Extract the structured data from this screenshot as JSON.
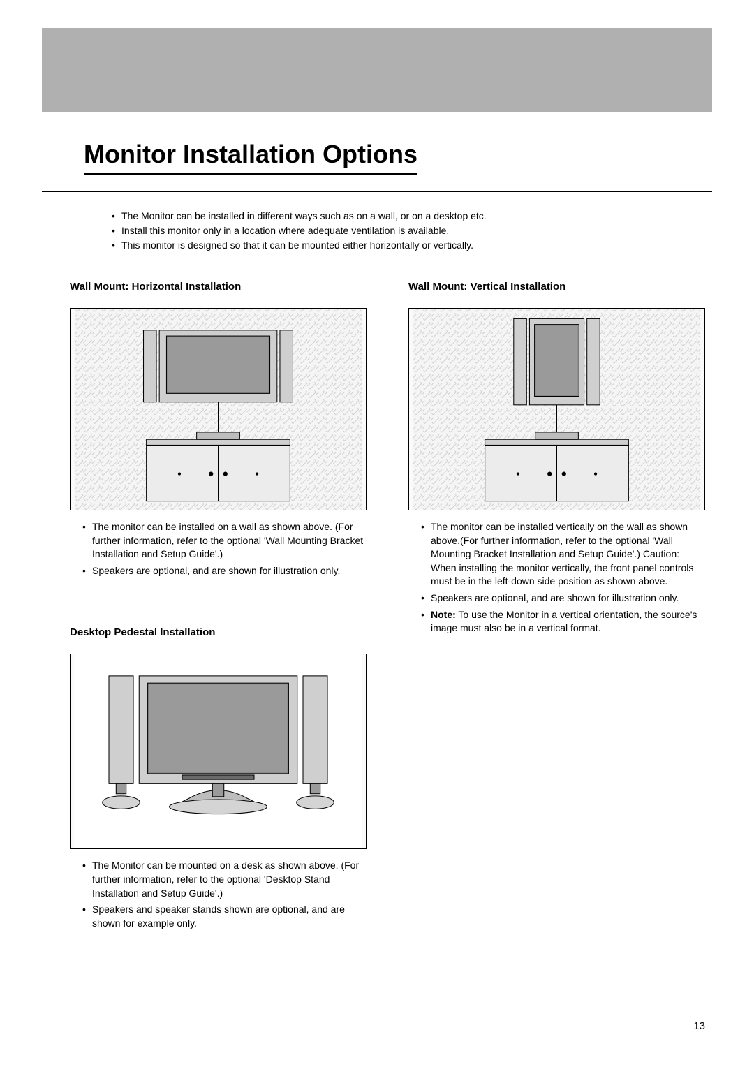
{
  "page": {
    "title": "Monitor Installation Options",
    "number": "13",
    "background": "#ffffff",
    "band_color": "#b0b0b0"
  },
  "intro": {
    "items": [
      "The Monitor can be installed in different ways such as on a wall, or on a desktop etc.",
      "Install this monitor only in a location where adequate ventilation is available.",
      "This monitor is designed so that it can be mounted either horizontally or vertically."
    ]
  },
  "sections": {
    "horizontal": {
      "heading": "Wall Mount: Horizontal Installation",
      "bullets": [
        "The monitor can be installed on a wall as shown above. (For further information, refer to the optional 'Wall Mounting Bracket Installation and Setup Guide'.)",
        "Speakers are optional, and are shown for illustration only."
      ]
    },
    "vertical": {
      "heading": "Wall Mount: Vertical Installation",
      "bullets": [
        "The monitor can be installed vertically on the wall as shown above.(For further information, refer to the optional 'Wall Mounting Bracket Installation and Setup Guide'.) Caution: When installing the monitor vertically, the front panel controls must be in the left-down side position as shown above.",
        "Speakers are optional, and are shown for illustration only.",
        "<b>Note:</b> To use the Monitor in a vertical orientation, the source's image must also be in a vertical format."
      ]
    },
    "desktop": {
      "heading": "Desktop Pedestal Installation",
      "bullets": [
        "The Monitor can be mounted on a desk as shown above. (For further information, refer to the optional 'Desktop Stand Installation and Setup Guide'.)",
        "Speakers and speaker stands shown are optional, and are shown for example only."
      ]
    }
  },
  "figure_style": {
    "border_color": "#000000",
    "fill_gray": "#cfcfcf",
    "fill_mid": "#9a9a9a",
    "fill_dark": "#6a6a6a",
    "fill_screen": "#8c8c8c",
    "line_width": 1
  }
}
